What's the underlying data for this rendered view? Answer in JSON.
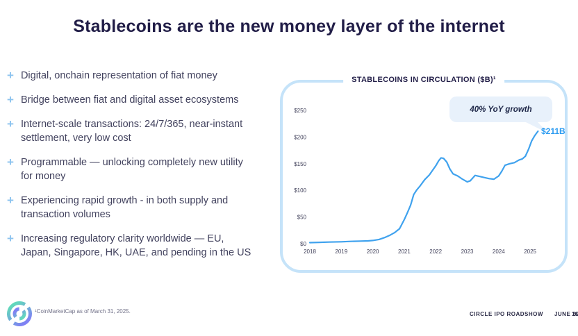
{
  "slide": {
    "title": "Stablecoins are the new money layer of the internet"
  },
  "icons": {
    "bullet_marker": "+"
  },
  "bullets": [
    {
      "label": "Digital, onchain representation of fiat money"
    },
    {
      "label": "Bridge between fiat and digital asset ecosystems"
    },
    {
      "label": "Internet-scale transactions: 24/7/365, near-instant settlement, very low cost"
    },
    {
      "label": "Programmable — unlocking completely new utility for money"
    },
    {
      "label": "Experiencing rapid growth - in both supply and transaction volumes"
    },
    {
      "label": "Increasing regulatory clarity worldwide — EU, Japan, Singapore, HK, UAE, and pending in the US"
    }
  ],
  "chart": {
    "title": "STABLECOINS IN CIRCULATION ($B)¹",
    "callout": "40% YoY growth",
    "end_label": "$211B"
  },
  "chart_data": {
    "type": "line",
    "title": "STABLECOINS IN CIRCULATION ($B)",
    "x": [
      2018.0,
      2018.3,
      2018.6,
      2019.0,
      2019.3,
      2019.6,
      2019.85,
      2020.0,
      2020.2,
      2020.4,
      2020.55,
      2020.7,
      2020.85,
      2021.0,
      2021.1,
      2021.2,
      2021.3,
      2021.4,
      2021.5,
      2021.65,
      2021.8,
      2022.0,
      2022.1,
      2022.17,
      2022.25,
      2022.35,
      2022.45,
      2022.55,
      2022.7,
      2022.85,
      2023.0,
      2023.1,
      2023.25,
      2023.4,
      2023.55,
      2023.7,
      2023.85,
      2024.0,
      2024.1,
      2024.2,
      2024.35,
      2024.5,
      2024.65,
      2024.75,
      2024.85,
      2024.95,
      2025.05,
      2025.15,
      2025.25
    ],
    "values": [
      2,
      2.5,
      3,
      3.5,
      4.3,
      4.8,
      5.2,
      6,
      8,
      12,
      16,
      21,
      28,
      45,
      58,
      72,
      92,
      101,
      108,
      120,
      129,
      146,
      156,
      161,
      160,
      153,
      140,
      131,
      127,
      121,
      116,
      118,
      128,
      126,
      124,
      122,
      121,
      127,
      136,
      147,
      150,
      152,
      157,
      159,
      164,
      177,
      193,
      203,
      211
    ],
    "xticks": [
      "2018",
      "2019",
      "2020",
      "2021",
      "2022",
      "2023",
      "2024",
      "2025"
    ],
    "yticks": [
      "$0",
      "$50",
      "$100",
      "$150",
      "$200",
      "$250"
    ],
    "ytick_values": [
      0,
      50,
      100,
      150,
      200,
      250
    ],
    "xlim": [
      2018,
      2025.45
    ],
    "ylim": [
      0,
      250
    ],
    "grid": false,
    "legend": false,
    "line_color": "#3fa2ee",
    "annotations": [
      "40% YoY growth",
      "$211B"
    ]
  },
  "footer": {
    "footnote": "¹CoinMarketCap as of March 31, 2025.",
    "brand": "CIRCLE IPO ROADSHOW",
    "date": "JUNE 2025",
    "page": "16"
  },
  "colors": {
    "title": "#211d47",
    "bullet_text": "#42425e",
    "bullet_marker": "#8cc3ef",
    "card_border": "#c5e3f9",
    "line": "#3fa2ee",
    "callout_bg": "#e8f1fb",
    "end_label": "#2d9cf1"
  }
}
